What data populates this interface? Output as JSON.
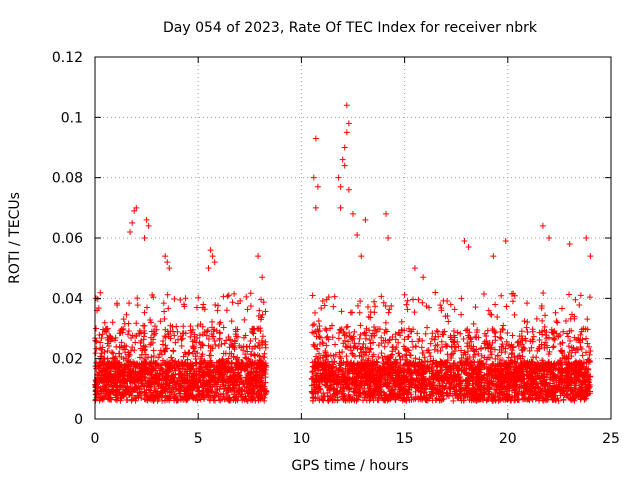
{
  "chart_data": {
    "type": "scatter",
    "title": "Day 054 of 2023, Rate Of TEC Index for receiver nbrk",
    "xlabel": "GPS time / hours",
    "ylabel": "ROTI / TECUs",
    "xlim": [
      0,
      25
    ],
    "ylim": [
      0,
      0.12
    ],
    "xticks": [
      0,
      5,
      10,
      15,
      20,
      25
    ],
    "yticks": [
      0,
      0.02,
      0.04,
      0.06,
      0.08,
      0.1,
      0.12
    ],
    "xtick_labels": [
      "0",
      "5",
      "10",
      "15",
      "20",
      "25"
    ],
    "ytick_labels": [
      "0",
      "0.02",
      "0.04",
      "0.06",
      "0.08",
      "0.1",
      "0.12"
    ],
    "grid": true,
    "marker": "+",
    "color": "#ff0000",
    "data_segments": [
      {
        "x_start": 0.0,
        "x_end": 8.3
      },
      {
        "x_start": 10.5,
        "x_end": 24.0
      }
    ],
    "series": [
      {
        "values_sample": [
          [
            0.05,
            0.04
          ],
          [
            0.1,
            0.036
          ],
          [
            0.05,
            0.03
          ],
          [
            1.9,
            0.069
          ],
          [
            2.0,
            0.07
          ],
          [
            1.8,
            0.065
          ],
          [
            1.7,
            0.062
          ],
          [
            2.5,
            0.066
          ],
          [
            2.6,
            0.064
          ],
          [
            2.4,
            0.06
          ],
          [
            3.4,
            0.054
          ],
          [
            3.5,
            0.052
          ],
          [
            3.6,
            0.05
          ],
          [
            5.6,
            0.056
          ],
          [
            5.7,
            0.054
          ],
          [
            5.5,
            0.05
          ],
          [
            5.8,
            0.052
          ],
          [
            7.9,
            0.054
          ],
          [
            8.1,
            0.047
          ],
          [
            10.7,
            0.093
          ],
          [
            10.6,
            0.08
          ],
          [
            10.8,
            0.077
          ],
          [
            10.7,
            0.07
          ],
          [
            11.8,
            0.08
          ],
          [
            11.9,
            0.077
          ],
          [
            12.2,
            0.104
          ],
          [
            12.3,
            0.098
          ],
          [
            12.2,
            0.095
          ],
          [
            12.1,
            0.09
          ],
          [
            12.0,
            0.086
          ],
          [
            12.1,
            0.084
          ],
          [
            12.3,
            0.076
          ],
          [
            11.9,
            0.07
          ],
          [
            12.5,
            0.068
          ],
          [
            12.7,
            0.061
          ],
          [
            12.9,
            0.054
          ],
          [
            13.1,
            0.066
          ],
          [
            14.1,
            0.068
          ],
          [
            14.2,
            0.06
          ],
          [
            15.5,
            0.05
          ],
          [
            15.9,
            0.047
          ],
          [
            17.9,
            0.059
          ],
          [
            18.1,
            0.057
          ],
          [
            19.3,
            0.054
          ],
          [
            19.9,
            0.059
          ],
          [
            21.7,
            0.064
          ],
          [
            22.0,
            0.06
          ],
          [
            23.0,
            0.058
          ],
          [
            23.8,
            0.06
          ],
          [
            24.0,
            0.054
          ]
        ]
      }
    ]
  }
}
